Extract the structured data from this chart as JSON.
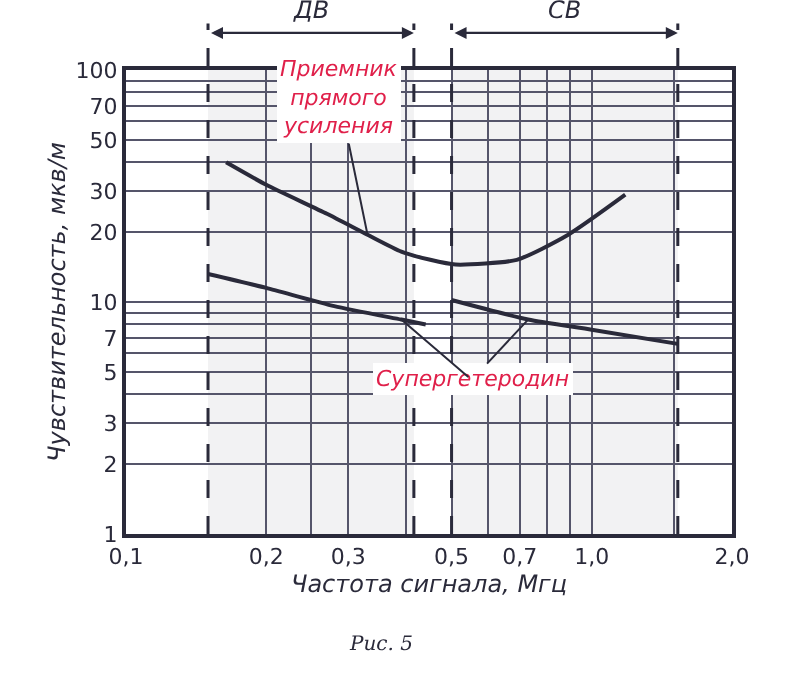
{
  "chart_data": {
    "type": "line",
    "xlabel": "Частота сигнала, Мгц",
    "ylabel": "Чувствительность, мкв/м",
    "log": "xy",
    "xlim": [
      0.1,
      2.0
    ],
    "ylim": [
      1,
      100
    ],
    "xticks": [
      {
        "value": 0.1,
        "label": "0,1"
      },
      {
        "value": 0.2,
        "label": "0,2"
      },
      {
        "value": 0.25,
        "label": null
      },
      {
        "value": 0.3,
        "label": "0,3"
      },
      {
        "value": 0.4,
        "label": null
      },
      {
        "value": 0.5,
        "label": "0,5"
      },
      {
        "value": 0.6,
        "label": null
      },
      {
        "value": 0.7,
        "label": "0,7"
      },
      {
        "value": 0.8,
        "label": null
      },
      {
        "value": 0.9,
        "label": null
      },
      {
        "value": 1.0,
        "label": "1,0"
      },
      {
        "value": 1.5,
        "label": null
      },
      {
        "value": 2.0,
        "label": "2,0"
      }
    ],
    "yticks": [
      1,
      2,
      3,
      {
        "value": 4,
        "label": null
      },
      5,
      {
        "value": 6,
        "label": null
      },
      7,
      {
        "value": 8,
        "label": null
      },
      {
        "value": 9,
        "label": null
      },
      10,
      20,
      30,
      {
        "value": 40,
        "label": null
      },
      50,
      {
        "value": 60,
        "label": null
      },
      70,
      {
        "value": 80,
        "label": null
      },
      {
        "value": 90,
        "label": null
      },
      100
    ],
    "grid": true,
    "legend": false,
    "marker": "none",
    "line_style": "solid",
    "series": [
      {
        "color": "#2a2a3a",
        "x": [
          0.164,
          0.2,
          0.27,
          0.33,
          0.39,
          0.45,
          0.51,
          0.69,
          0.89,
          1.18
        ],
        "values": [
          40,
          32,
          24,
          19.5,
          16.5,
          15.2,
          14.5,
          15.2,
          19.5,
          29
        ]
      },
      {
        "color": "#2a2a3a",
        "x": [
          0.15,
          0.2,
          0.28,
          0.39,
          0.44,
          0.47,
          0.5,
          0.73,
          1.0,
          1.53
        ],
        "values": [
          13.2,
          11.5,
          9.6,
          8.4,
          8.0,
          null,
          10.2,
          8.4,
          7.6,
          6.6
        ]
      }
    ],
    "bands": [
      {
        "axis": "x",
        "from": 0.15,
        "to": 0.415,
        "label": "ДВ"
      },
      {
        "axis": "x",
        "from": 0.5,
        "to": 1.53,
        "label": "СВ"
      }
    ],
    "annotations": [
      {
        "text": "Приемник прямого усиления",
        "x": 0.33,
        "y": 19.5
      },
      {
        "text": "Супергетеродин",
        "x": 0.73,
        "y": 8.4
      },
      "Рис. 5"
    ]
  }
}
